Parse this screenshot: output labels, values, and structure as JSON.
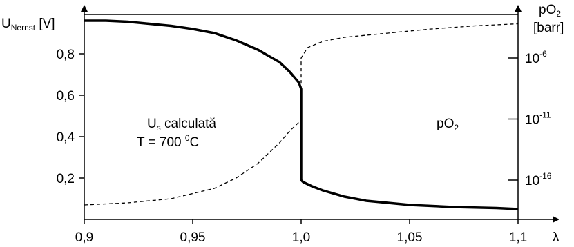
{
  "chart_data": {
    "type": "line",
    "xlabel": "λ",
    "ylabel_left": {
      "main": "U",
      "sub": "Nernst",
      "unit": " [V]"
    },
    "ylabel_right": {
      "line1_main": "pO",
      "line1_sub": "2",
      "line2": "[barr]"
    },
    "xlim": [
      0.9,
      1.1
    ],
    "ylim_left": [
      0.0,
      1.0
    ],
    "x_ticks": [
      {
        "value": 0.9,
        "label": "0,9"
      },
      {
        "value": 0.95,
        "label": "0,95"
      },
      {
        "value": 1.0,
        "label": "1,0"
      },
      {
        "value": 1.05,
        "label": "1,05"
      },
      {
        "value": 1.1,
        "label": "1,1"
      }
    ],
    "y_left_ticks": [
      {
        "value": 0.2,
        "label": "0,2"
      },
      {
        "value": 0.4,
        "label": "0,4"
      },
      {
        "value": 0.6,
        "label": "0,6"
      },
      {
        "value": 0.8,
        "label": "0,8"
      }
    ],
    "y_right_ticks": [
      {
        "exponent": -6,
        "base": "10",
        "sup": "-6"
      },
      {
        "exponent": -11,
        "base": "10",
        "sup": "-11"
      },
      {
        "exponent": -16,
        "base": "10",
        "sup": "-16"
      }
    ],
    "y_right_log_mapping": {
      "left_units": [
        0.78,
        0.19
      ],
      "exponents": [
        -6,
        -16
      ]
    },
    "series": [
      {
        "style": "solid-thick",
        "axis": "left",
        "points": [
          [
            0.9,
            0.96
          ],
          [
            0.91,
            0.96
          ],
          [
            0.92,
            0.955
          ],
          [
            0.93,
            0.945
          ],
          [
            0.94,
            0.935
          ],
          [
            0.95,
            0.92
          ],
          [
            0.96,
            0.9
          ],
          [
            0.97,
            0.865
          ],
          [
            0.98,
            0.82
          ],
          [
            0.99,
            0.76
          ],
          [
            0.995,
            0.71
          ],
          [
            0.999,
            0.66
          ],
          [
            1.0,
            0.63
          ],
          [
            1.0,
            0.19
          ],
          [
            1.001,
            0.18
          ],
          [
            1.005,
            0.16
          ],
          [
            1.01,
            0.14
          ],
          [
            1.02,
            0.11
          ],
          [
            1.03,
            0.09
          ],
          [
            1.05,
            0.07
          ],
          [
            1.07,
            0.06
          ],
          [
            1.09,
            0.055
          ],
          [
            1.1,
            0.05
          ]
        ]
      },
      {
        "style": "dashed",
        "axis": "left",
        "points": [
          [
            0.9,
            0.07
          ],
          [
            0.92,
            0.08
          ],
          [
            0.94,
            0.1
          ],
          [
            0.96,
            0.15
          ],
          [
            0.97,
            0.2
          ],
          [
            0.98,
            0.27
          ],
          [
            0.99,
            0.37
          ],
          [
            0.995,
            0.43
          ],
          [
            1.0,
            0.48
          ],
          [
            1.0,
            0.78
          ],
          [
            1.003,
            0.83
          ],
          [
            1.01,
            0.86
          ],
          [
            1.02,
            0.88
          ],
          [
            1.04,
            0.9
          ],
          [
            1.06,
            0.92
          ],
          [
            1.08,
            0.935
          ],
          [
            1.1,
            0.945
          ]
        ]
      }
    ],
    "reference_line": {
      "y": 0.99
    },
    "annotations": [
      {
        "line1_main": "U",
        "line1_sub": "s",
        "line1_rest": " calculată",
        "line2_main": "T = 700 ",
        "line2_sup": "0",
        "line2_rest": "C"
      },
      {
        "main": "pO",
        "sub": "2"
      }
    ]
  }
}
